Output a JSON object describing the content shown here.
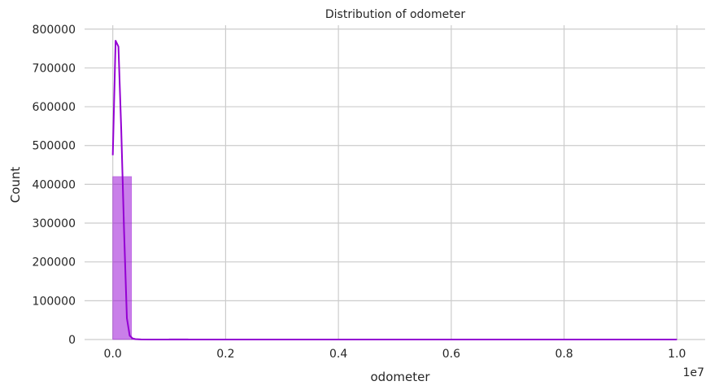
{
  "chart_data": {
    "type": "histogram",
    "title": "Distribution of odometer",
    "xlabel": "odometer",
    "ylabel": "Count",
    "x_offset_label": "1e7",
    "xlim": [
      -500000,
      10500000
    ],
    "ylim": [
      0,
      810000
    ],
    "x_ticks": [
      0,
      2000000,
      4000000,
      6000000,
      8000000,
      10000000
    ],
    "x_tick_labels": [
      "0.0",
      "0.2",
      "0.4",
      "0.6",
      "0.8",
      "1.0"
    ],
    "y_ticks": [
      0,
      100000,
      200000,
      300000,
      400000,
      500000,
      600000,
      700000,
      800000
    ],
    "y_tick_labels": [
      "0",
      "100000",
      "200000",
      "300000",
      "400000",
      "500000",
      "600000",
      "700000",
      "800000"
    ],
    "grid": true,
    "color": "#9400d3",
    "bins": [
      {
        "start": 0,
        "end": 333333,
        "count": 420000
      },
      {
        "start": 333333,
        "end": 666667,
        "count": 1500
      },
      {
        "start": 666667,
        "end": 1000000,
        "count": 800
      },
      {
        "start": 1000000,
        "end": 1333333,
        "count": 2000
      },
      {
        "start": 1333333,
        "end": 1666667,
        "count": 300
      },
      {
        "start": 1666667,
        "end": 2000000,
        "count": 200
      },
      {
        "start": 2000000,
        "end": 2333333,
        "count": 150
      },
      {
        "start": 2333333,
        "end": 2666667,
        "count": 100
      },
      {
        "start": 2666667,
        "end": 3000000,
        "count": 100
      },
      {
        "start": 3000000,
        "end": 3333333,
        "count": 80
      },
      {
        "start": 3333333,
        "end": 3666667,
        "count": 80
      },
      {
        "start": 3666667,
        "end": 4000000,
        "count": 60
      },
      {
        "start": 4000000,
        "end": 4333333,
        "count": 60
      },
      {
        "start": 4333333,
        "end": 4666667,
        "count": 50
      },
      {
        "start": 4666667,
        "end": 5000000,
        "count": 50
      },
      {
        "start": 5000000,
        "end": 5333333,
        "count": 40
      },
      {
        "start": 5333333,
        "end": 5666667,
        "count": 40
      },
      {
        "start": 5666667,
        "end": 6000000,
        "count": 30
      },
      {
        "start": 6000000,
        "end": 6333333,
        "count": 30
      },
      {
        "start": 6333333,
        "end": 6666667,
        "count": 30
      },
      {
        "start": 6666667,
        "end": 7000000,
        "count": 20
      },
      {
        "start": 7000000,
        "end": 7333333,
        "count": 20
      },
      {
        "start": 7333333,
        "end": 7666667,
        "count": 20
      },
      {
        "start": 7666667,
        "end": 8000000,
        "count": 20
      },
      {
        "start": 8000000,
        "end": 8333333,
        "count": 20
      },
      {
        "start": 8333333,
        "end": 8666667,
        "count": 20
      },
      {
        "start": 8666667,
        "end": 9000000,
        "count": 20
      },
      {
        "start": 9000000,
        "end": 9333333,
        "count": 20
      },
      {
        "start": 9333333,
        "end": 9666667,
        "count": 20
      },
      {
        "start": 9666667,
        "end": 10000000,
        "count": 40
      }
    ],
    "kde": {
      "x": [
        0,
        50000,
        100000,
        150000,
        200000,
        250000,
        300000,
        350000,
        400000,
        500000,
        700000,
        1000000,
        1500000,
        2000000,
        3000000,
        4000000,
        5000000,
        6000000,
        7000000,
        8000000,
        9000000,
        10000000
      ],
      "y": [
        475000,
        770000,
        755000,
        540000,
        280000,
        55000,
        10000,
        3000,
        1000,
        300,
        100,
        100,
        50,
        30,
        20,
        10,
        10,
        10,
        10,
        10,
        10,
        10
      ]
    }
  }
}
